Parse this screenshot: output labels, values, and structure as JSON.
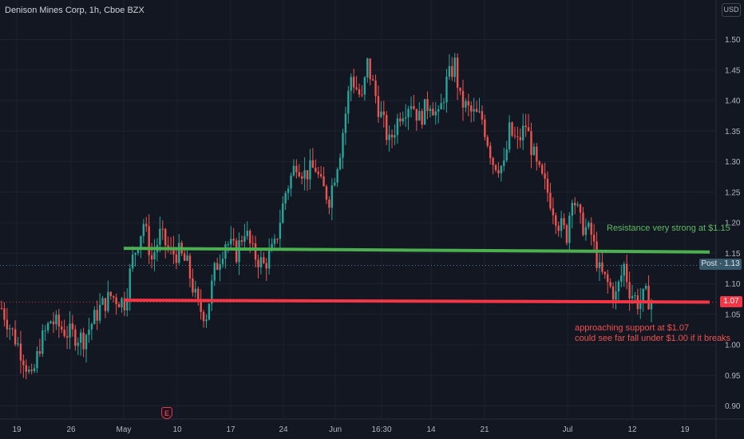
{
  "header": {
    "symbol_title": "Denison Mines Corp, 1h, Cboe BZX",
    "currency": "USD"
  },
  "colors": {
    "background": "#131722",
    "grid": "#1e222d",
    "up": "#26a69a",
    "down": "#ef5350",
    "resistance": "#4caf50",
    "support": "#f23645",
    "axis_text": "#b2b5be"
  },
  "badges": {
    "post_label": "Post · 1.13",
    "last_label": "1.07"
  },
  "events": {
    "earnings_label": "E",
    "earnings_icon": "earnings-icon"
  },
  "chart_data": {
    "type": "candlestick",
    "timeframe": "1h",
    "ylim": [
      0.87,
      1.53
    ],
    "y_ticks": [
      0.9,
      0.95,
      1.0,
      1.05,
      1.1,
      1.15,
      1.2,
      1.25,
      1.3,
      1.35,
      1.4,
      1.45,
      1.5
    ],
    "x_ticks": [
      "19",
      "26",
      "May",
      "10",
      "17",
      "24",
      "Jun",
      "16:30",
      "14",
      "21",
      "Jul",
      "12",
      "19"
    ],
    "grid": true,
    "post_price": 1.13,
    "last_price": 1.07,
    "lines": [
      {
        "name": "resistance",
        "from": [
          "May",
          1.158
        ],
        "to": [
          "Jul 19",
          1.152
        ],
        "color": "#4caf50"
      },
      {
        "name": "support",
        "from": [
          "May",
          1.073
        ],
        "to": [
          "Jul 19",
          1.07
        ],
        "color": "#f23645"
      }
    ],
    "annotations": [
      {
        "name": "resistance-note",
        "text": "Resistance very strong at $1.15"
      },
      {
        "name": "support-note-line1",
        "text": "approaching support at $1.07"
      },
      {
        "name": "support-note-line2",
        "text": "could see far fall under $1.00 if it breaks"
      }
    ],
    "price_path": [
      [
        0,
        1.06
      ],
      [
        4,
        1.02
      ],
      [
        8,
        0.98
      ],
      [
        11,
        0.94
      ],
      [
        14,
        1.0
      ],
      [
        18,
        1.04
      ],
      [
        24,
        1.02
      ],
      [
        30,
        1.01
      ],
      [
        36,
        1.06
      ],
      [
        40,
        1.08
      ],
      [
        45,
        1.07
      ],
      [
        48,
        1.14
      ],
      [
        52,
        1.2
      ],
      [
        55,
        1.14
      ],
      [
        58,
        1.18
      ],
      [
        62,
        1.15
      ],
      [
        65,
        1.15
      ],
      [
        68,
        1.13
      ],
      [
        72,
        1.06
      ],
      [
        75,
        1.05
      ],
      [
        78,
        1.12
      ],
      [
        82,
        1.17
      ],
      [
        86,
        1.15
      ],
      [
        89,
        1.19
      ],
      [
        92,
        1.15
      ],
      [
        96,
        1.13
      ],
      [
        100,
        1.16
      ],
      [
        104,
        1.25
      ],
      [
        108,
        1.3
      ],
      [
        111,
        1.28
      ],
      [
        115,
        1.29
      ],
      [
        117,
        1.26
      ],
      [
        120,
        1.24
      ],
      [
        124,
        1.32
      ],
      [
        128,
        1.44
      ],
      [
        132,
        1.4
      ],
      [
        134,
        1.46
      ],
      [
        138,
        1.39
      ],
      [
        142,
        1.33
      ],
      [
        146,
        1.38
      ],
      [
        150,
        1.4
      ],
      [
        153,
        1.37
      ],
      [
        157,
        1.4
      ],
      [
        160,
        1.37
      ],
      [
        163,
        1.43
      ],
      [
        166,
        1.46
      ],
      [
        168,
        1.4
      ],
      [
        172,
        1.38
      ],
      [
        176,
        1.37
      ],
      [
        180,
        1.3
      ],
      [
        184,
        1.29
      ],
      [
        186,
        1.35
      ],
      [
        189,
        1.33
      ],
      [
        192,
        1.36
      ],
      [
        196,
        1.29
      ],
      [
        200,
        1.25
      ],
      [
        204,
        1.2
      ],
      [
        207,
        1.18
      ],
      [
        209,
        1.25
      ],
      [
        212,
        1.2
      ],
      [
        216,
        1.18
      ],
      [
        219,
        1.12
      ],
      [
        222,
        1.1
      ],
      [
        225,
        1.08
      ],
      [
        228,
        1.13
      ],
      [
        230,
        1.09
      ],
      [
        233,
        1.07
      ],
      [
        236,
        1.08
      ],
      [
        238,
        1.07
      ]
    ]
  }
}
